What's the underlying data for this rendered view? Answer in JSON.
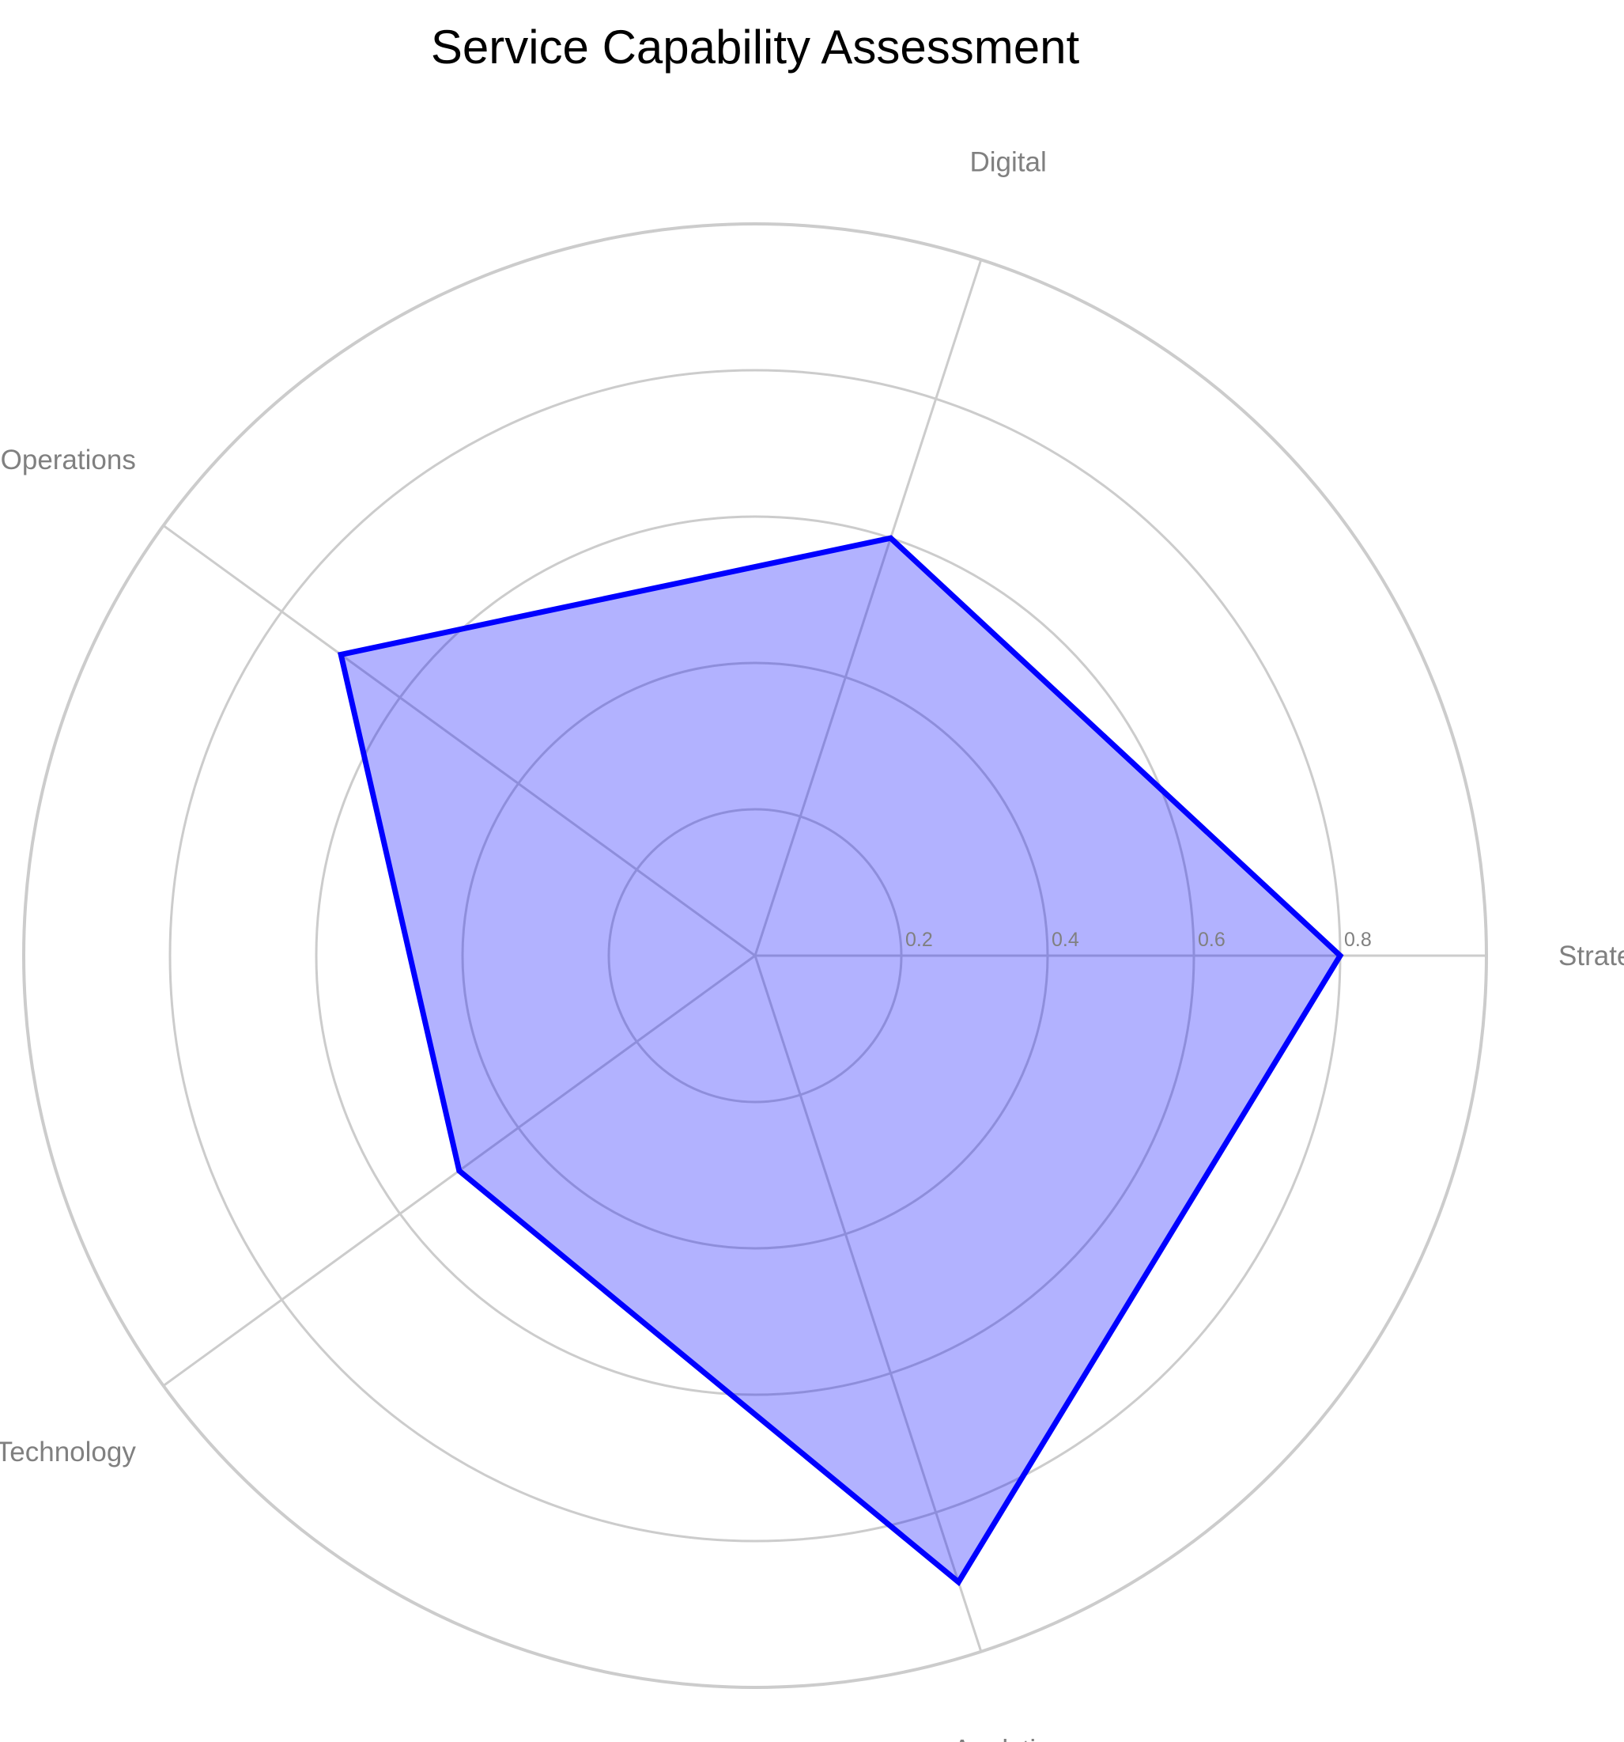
{
  "chart_data": {
    "type": "radar",
    "title": "Service Capability Assessment",
    "categories": [
      "Strategy",
      "Digital",
      "Operations",
      "Technology",
      "Analytics"
    ],
    "values": [
      0.8,
      0.6,
      0.7,
      0.5,
      0.9
    ],
    "r_ticks": [
      0.2,
      0.4,
      0.6,
      0.8
    ],
    "r_tick_labels": [
      "0.2",
      "0.4",
      "0.6",
      "0.8"
    ],
    "rlim": [
      0,
      1
    ],
    "grid": true,
    "legend": false,
    "colors": {
      "line": "#0000ff",
      "fill": "#0000ff",
      "fill_opacity": 0.3,
      "grid": "#cccccc",
      "label": "#808080",
      "tick_label": "#808080"
    }
  }
}
